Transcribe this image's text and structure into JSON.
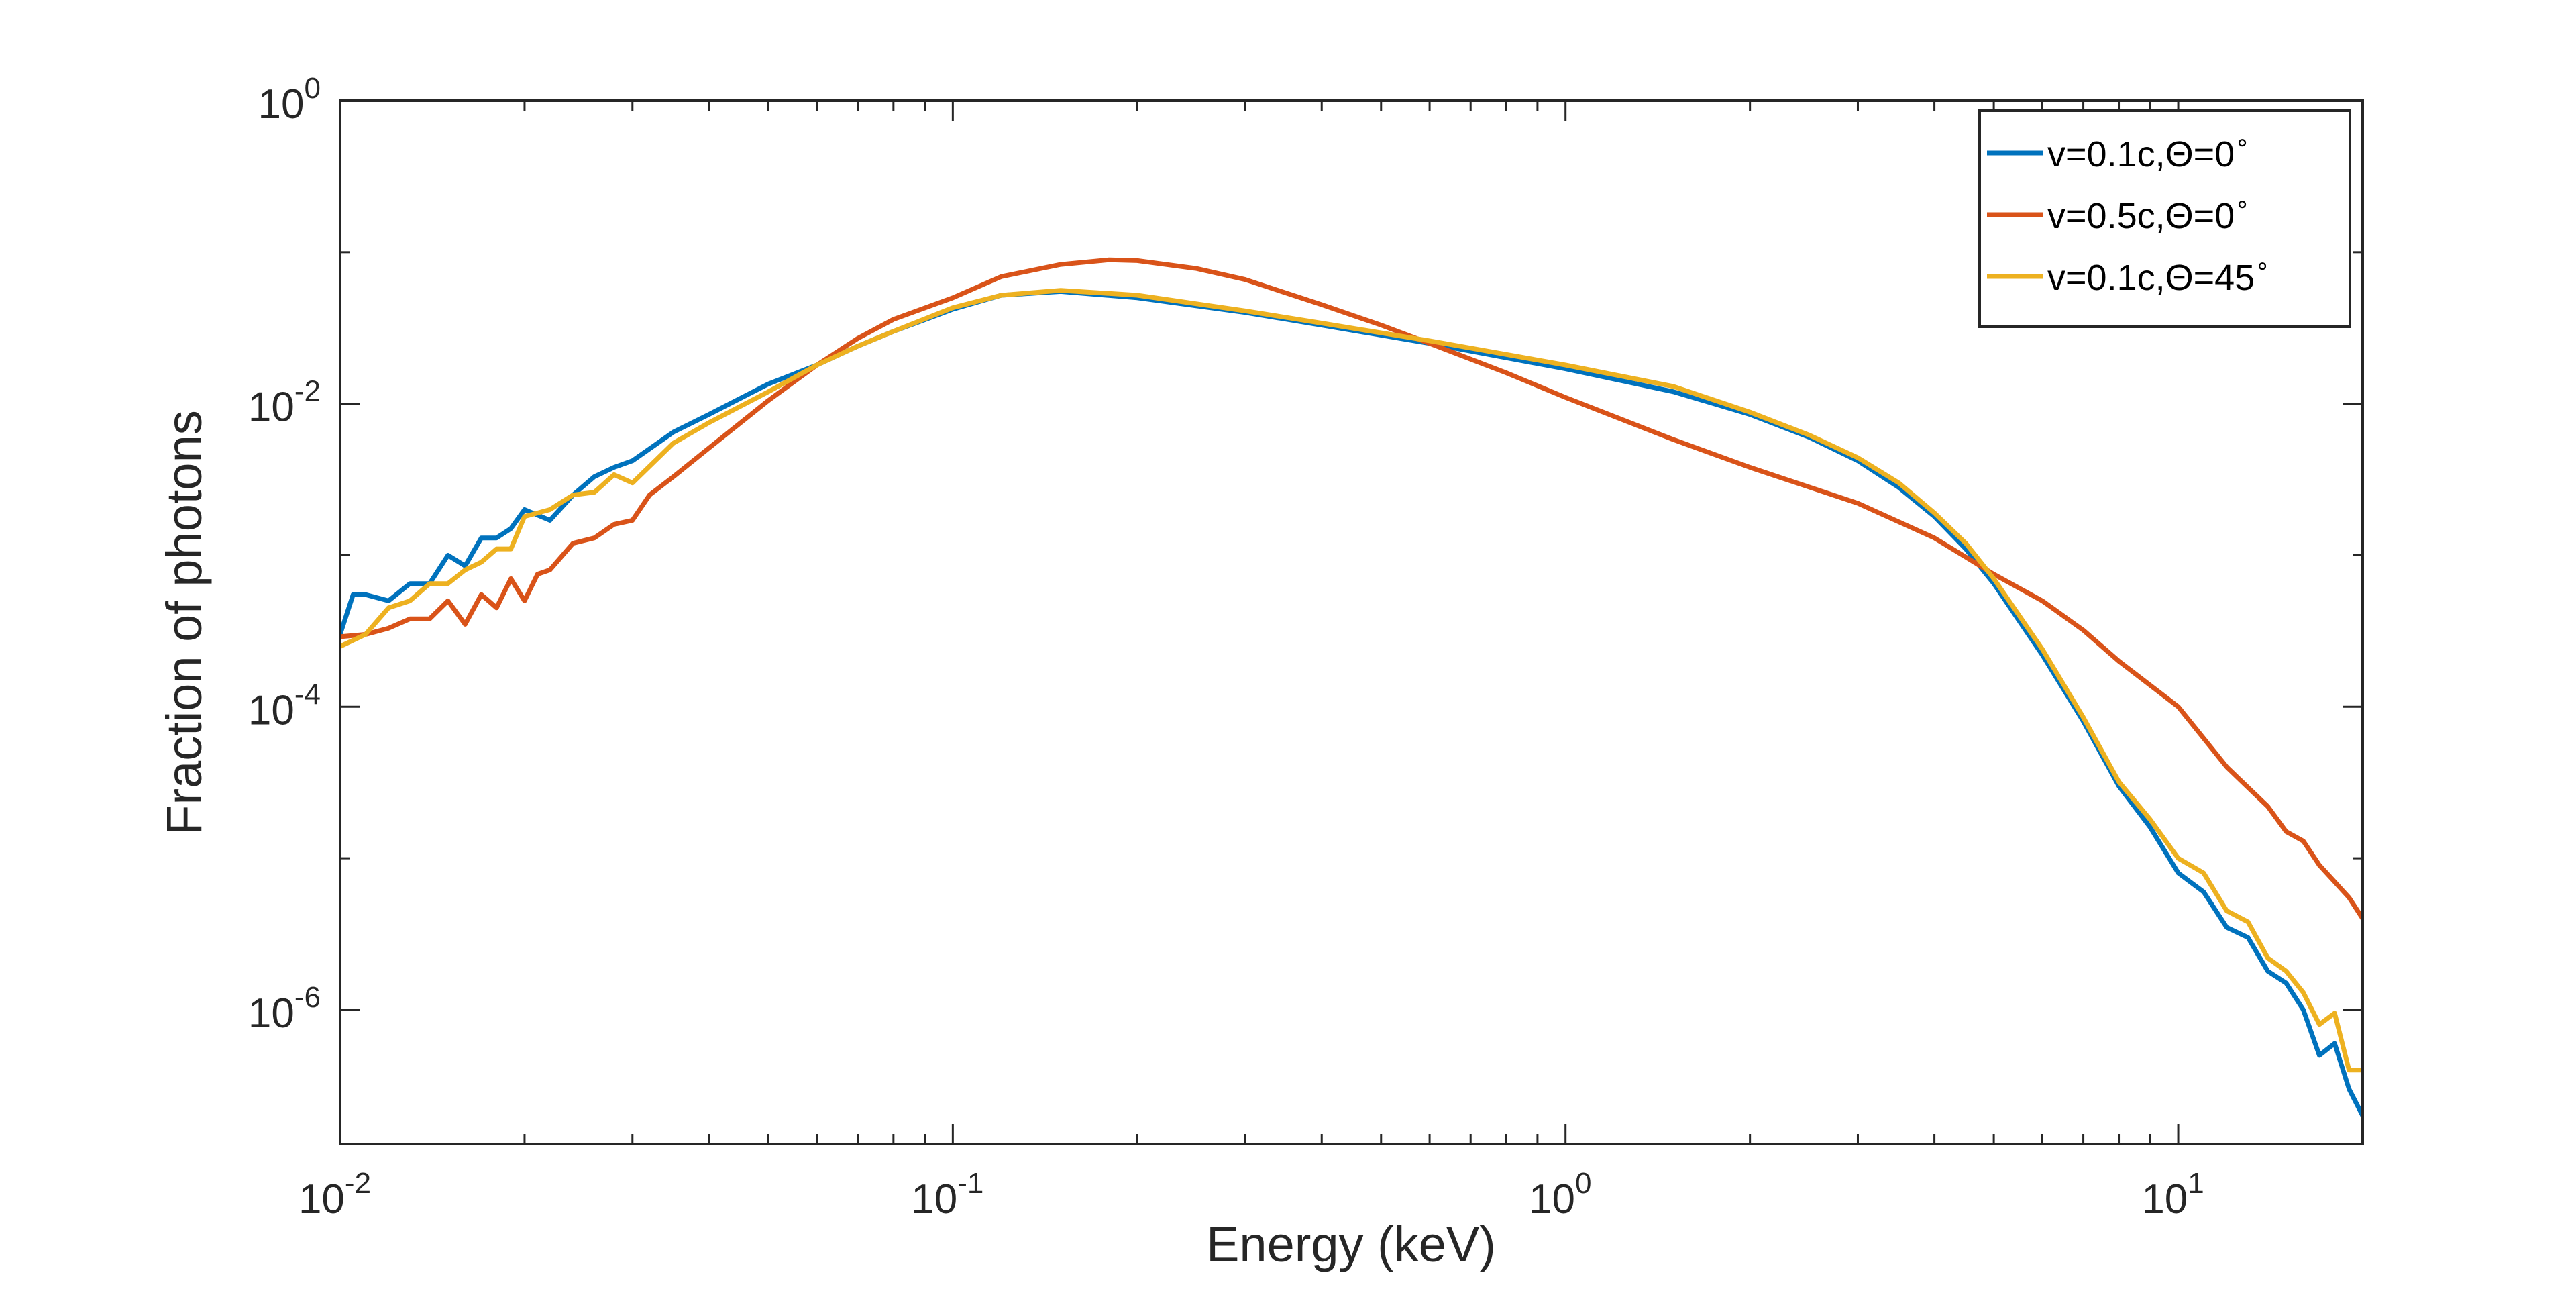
{
  "chart_data": {
    "type": "line",
    "title": "",
    "xlabel": "Energy (keV)",
    "ylabel": "Fraction of photons",
    "xscale": "log",
    "yscale": "log",
    "xlim": [
      0.01,
      20
    ],
    "ylim": [
      1.3e-07,
      1
    ],
    "grid": false,
    "legend_position": "top-right",
    "x_tick_labels": [
      {
        "value": 0.01,
        "base": "10",
        "exp": "-2"
      },
      {
        "value": 0.1,
        "base": "10",
        "exp": "-1"
      },
      {
        "value": 1,
        "base": "10",
        "exp": "0"
      },
      {
        "value": 10,
        "base": "10",
        "exp": "1"
      }
    ],
    "y_tick_labels": [
      {
        "value": 1,
        "base": "10",
        "exp": "0"
      },
      {
        "value": 0.01,
        "base": "10",
        "exp": "-2"
      },
      {
        "value": 0.0001,
        "base": "10",
        "exp": "-4"
      },
      {
        "value": 1e-06,
        "base": "10",
        "exp": "-6"
      }
    ],
    "series": [
      {
        "name": "v=0.1c,Θ=0°",
        "label_main": "v=0.1c,Θ=0",
        "label_sup": "∘",
        "color": "#0072BD",
        "x": [
          0.01,
          0.0105,
          0.011,
          0.012,
          0.013,
          0.014,
          0.015,
          0.016,
          0.017,
          0.018,
          0.019,
          0.02,
          0.022,
          0.024,
          0.026,
          0.028,
          0.03,
          0.035,
          0.04,
          0.05,
          0.06,
          0.07,
          0.08,
          0.1,
          0.12,
          0.15,
          0.2,
          0.3,
          0.4,
          0.6,
          1,
          1.5,
          2,
          2.5,
          3,
          3.5,
          4,
          4.5,
          5,
          6,
          7,
          8,
          9,
          10,
          11,
          12,
          13,
          14,
          15,
          16,
          17,
          18,
          19,
          20
        ],
        "y": [
          0.0003,
          0.00055,
          0.00055,
          0.0005,
          0.00065,
          0.00065,
          0.001,
          0.00085,
          0.0013,
          0.0013,
          0.0015,
          0.002,
          0.0017,
          0.0025,
          0.0033,
          0.0038,
          0.0042,
          0.0065,
          0.0085,
          0.0135,
          0.018,
          0.024,
          0.03,
          0.042,
          0.052,
          0.055,
          0.05,
          0.04,
          0.033,
          0.025,
          0.017,
          0.012,
          0.0085,
          0.006,
          0.0042,
          0.0028,
          0.0018,
          0.0011,
          0.00065,
          0.00022,
          8e-05,
          3e-05,
          1.6e-05,
          8e-06,
          6e-06,
          3.5e-06,
          3e-06,
          1.8e-06,
          1.5e-06,
          1e-06,
          5e-07,
          6e-07,
          3e-07,
          2e-07
        ]
      },
      {
        "name": "v=0.5c,Θ=0°",
        "label_main": "v=0.5c,Θ=0",
        "label_sup": "∘",
        "color": "#D95319",
        "x": [
          0.01,
          0.011,
          0.012,
          0.013,
          0.014,
          0.015,
          0.016,
          0.017,
          0.018,
          0.019,
          0.02,
          0.021,
          0.022,
          0.024,
          0.026,
          0.028,
          0.03,
          0.032,
          0.035,
          0.04,
          0.05,
          0.06,
          0.07,
          0.08,
          0.1,
          0.12,
          0.15,
          0.18,
          0.2,
          0.25,
          0.3,
          0.4,
          0.5,
          0.6,
          0.8,
          1,
          1.5,
          2,
          3,
          4,
          5,
          6,
          7,
          8,
          10,
          12,
          14,
          15,
          16,
          17,
          18,
          19,
          20
        ],
        "y": [
          0.00029,
          0.0003,
          0.00033,
          0.00038,
          0.00038,
          0.0005,
          0.00035,
          0.00055,
          0.00045,
          0.0007,
          0.0005,
          0.00075,
          0.0008,
          0.0012,
          0.0013,
          0.0016,
          0.0017,
          0.0025,
          0.0033,
          0.0051,
          0.0105,
          0.018,
          0.027,
          0.036,
          0.05,
          0.069,
          0.083,
          0.089,
          0.088,
          0.078,
          0.066,
          0.045,
          0.033,
          0.025,
          0.016,
          0.011,
          0.0058,
          0.0038,
          0.0022,
          0.0013,
          0.00075,
          0.0005,
          0.00032,
          0.0002,
          0.0001,
          4e-05,
          2.2e-05,
          1.5e-05,
          1.3e-05,
          9e-06,
          7e-06,
          5.5e-06,
          4e-06
        ]
      },
      {
        "name": "v=0.1c,Θ=45°",
        "label_main": "v=0.1c,Θ=45",
        "label_sup": "∘",
        "color": "#EDB120",
        "x": [
          0.01,
          0.011,
          0.012,
          0.013,
          0.014,
          0.015,
          0.016,
          0.017,
          0.018,
          0.019,
          0.02,
          0.022,
          0.024,
          0.026,
          0.028,
          0.03,
          0.035,
          0.04,
          0.05,
          0.06,
          0.07,
          0.08,
          0.1,
          0.12,
          0.15,
          0.2,
          0.3,
          0.4,
          0.6,
          1,
          1.5,
          2,
          2.5,
          3,
          3.5,
          4,
          4.5,
          5,
          6,
          7,
          8,
          9,
          10,
          11,
          12,
          13,
          14,
          15,
          16,
          17,
          18,
          19,
          20
        ],
        "y": [
          0.00025,
          0.0003,
          0.00045,
          0.0005,
          0.00065,
          0.00065,
          0.0008,
          0.0009,
          0.0011,
          0.0011,
          0.0018,
          0.002,
          0.0025,
          0.0026,
          0.0034,
          0.003,
          0.0055,
          0.0075,
          0.012,
          0.018,
          0.024,
          0.03,
          0.043,
          0.052,
          0.056,
          0.052,
          0.041,
          0.034,
          0.026,
          0.018,
          0.013,
          0.0088,
          0.0062,
          0.0044,
          0.003,
          0.0019,
          0.0012,
          0.0007,
          0.00024,
          8.5e-05,
          3.2e-05,
          1.8e-05,
          1e-05,
          8e-06,
          4.5e-06,
          3.8e-06,
          2.2e-06,
          1.8e-06,
          1.3e-06,
          8e-07,
          9.5e-07,
          4e-07,
          4e-07
        ]
      }
    ]
  }
}
